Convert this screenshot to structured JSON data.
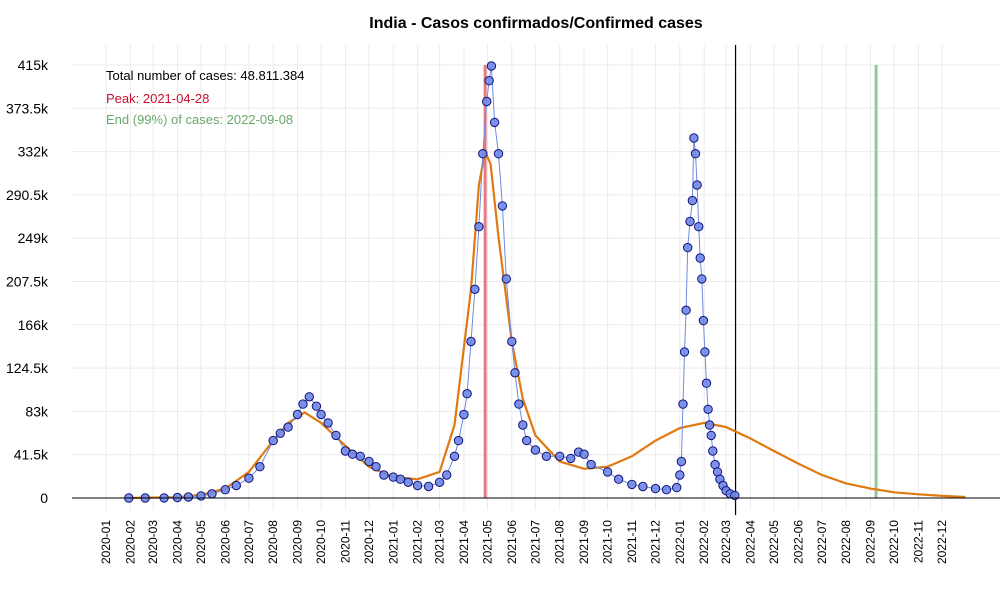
{
  "chart_data": {
    "type": "scatter",
    "title": "India - Casos confirmados/Confirmed cases",
    "xlabel": "",
    "ylabel": "",
    "xlim": [
      "2019-12-15",
      "2023-01-20"
    ],
    "ylim": [
      0,
      415000
    ],
    "grid": true,
    "y_ticks": [
      {
        "value": 0,
        "label": "0"
      },
      {
        "value": 41500,
        "label": "41.5k"
      },
      {
        "value": 83000,
        "label": "83k"
      },
      {
        "value": 124500,
        "label": "124.5k"
      },
      {
        "value": 166000,
        "label": "166k"
      },
      {
        "value": 207500,
        "label": "207.5k"
      },
      {
        "value": 249000,
        "label": "249k"
      },
      {
        "value": 290500,
        "label": "290.5k"
      },
      {
        "value": 332000,
        "label": "332k"
      },
      {
        "value": 373500,
        "label": "373.5k"
      },
      {
        "value": 415000,
        "label": "415k"
      }
    ],
    "x_ticks": [
      "2020-01",
      "2020-02",
      "2020-03",
      "2020-04",
      "2020-05",
      "2020-06",
      "2020-07",
      "2020-08",
      "2020-09",
      "2020-10",
      "2020-11",
      "2020-12",
      "2021-01",
      "2021-02",
      "2021-03",
      "2021-04",
      "2021-05",
      "2021-06",
      "2021-07",
      "2021-08",
      "2021-09",
      "2021-10",
      "2021-11",
      "2021-12",
      "2022-01",
      "2022-02",
      "2022-03",
      "2022-04",
      "2022-05",
      "2022-06",
      "2022-07",
      "2022-08",
      "2022-09",
      "2022-10",
      "2022-11",
      "2022-12"
    ],
    "annotations": {
      "total_text": "Total number of cases: 48.811.384",
      "peak_text": "Peak: 2021-04-28",
      "end_text": "End (99%) of cases: 2022-09-08"
    },
    "reference_lines": [
      {
        "date": "2021-04-28",
        "color": "#e37a85",
        "meaning": "peak"
      },
      {
        "date": "2022-03-13",
        "color": "#000000",
        "meaning": "last data"
      },
      {
        "date": "2022-09-08",
        "color": "#93c993",
        "meaning": "end 99%"
      }
    ],
    "colors": {
      "points_fill": "#6f88e8",
      "points_stroke": "#12127a",
      "points_line": "#6f8ae0",
      "fit_curve": "#e07a10",
      "peak_color": "#c8102e",
      "end_color": "#6aa86a"
    },
    "series": [
      {
        "name": "",
        "kind": "observed",
        "points": [
          [
            "2020-01-30",
            0
          ],
          [
            "2020-02-20",
            0
          ],
          [
            "2020-03-15",
            100
          ],
          [
            "2020-04-01",
            500
          ],
          [
            "2020-04-15",
            1000
          ],
          [
            "2020-05-01",
            2000
          ],
          [
            "2020-05-15",
            4000
          ],
          [
            "2020-06-01",
            8000
          ],
          [
            "2020-06-15",
            12000
          ],
          [
            "2020-07-01",
            19000
          ],
          [
            "2020-07-15",
            30000
          ],
          [
            "2020-08-01",
            55000
          ],
          [
            "2020-08-10",
            62000
          ],
          [
            "2020-08-20",
            68000
          ],
          [
            "2020-09-01",
            80000
          ],
          [
            "2020-09-08",
            90000
          ],
          [
            "2020-09-16",
            97000
          ],
          [
            "2020-09-25",
            88000
          ],
          [
            "2020-10-01",
            80000
          ],
          [
            "2020-10-10",
            72000
          ],
          [
            "2020-10-20",
            60000
          ],
          [
            "2020-11-01",
            45000
          ],
          [
            "2020-11-10",
            42000
          ],
          [
            "2020-11-20",
            40000
          ],
          [
            "2020-12-01",
            35000
          ],
          [
            "2020-12-10",
            30000
          ],
          [
            "2020-12-20",
            22000
          ],
          [
            "2021-01-01",
            20000
          ],
          [
            "2021-01-10",
            18000
          ],
          [
            "2021-01-20",
            15000
          ],
          [
            "2021-02-01",
            12000
          ],
          [
            "2021-02-15",
            11000
          ],
          [
            "2021-03-01",
            15000
          ],
          [
            "2021-03-10",
            22000
          ],
          [
            "2021-03-20",
            40000
          ],
          [
            "2021-03-25",
            55000
          ],
          [
            "2021-04-01",
            80000
          ],
          [
            "2021-04-05",
            100000
          ],
          [
            "2021-04-10",
            150000
          ],
          [
            "2021-04-15",
            200000
          ],
          [
            "2021-04-20",
            260000
          ],
          [
            "2021-04-25",
            330000
          ],
          [
            "2021-04-30",
            380000
          ],
          [
            "2021-05-03",
            400000
          ],
          [
            "2021-05-06",
            414000
          ],
          [
            "2021-05-10",
            360000
          ],
          [
            "2021-05-15",
            330000
          ],
          [
            "2021-05-20",
            280000
          ],
          [
            "2021-05-25",
            210000
          ],
          [
            "2021-06-01",
            150000
          ],
          [
            "2021-06-05",
            120000
          ],
          [
            "2021-06-10",
            90000
          ],
          [
            "2021-06-15",
            70000
          ],
          [
            "2021-06-20",
            55000
          ],
          [
            "2021-07-01",
            46000
          ],
          [
            "2021-07-15",
            40000
          ],
          [
            "2021-08-01",
            40000
          ],
          [
            "2021-08-15",
            38000
          ],
          [
            "2021-08-25",
            44000
          ],
          [
            "2021-09-01",
            42000
          ],
          [
            "2021-09-10",
            32000
          ],
          [
            "2021-10-01",
            25000
          ],
          [
            "2021-10-15",
            18000
          ],
          [
            "2021-11-01",
            13000
          ],
          [
            "2021-11-15",
            11000
          ],
          [
            "2021-12-01",
            9000
          ],
          [
            "2021-12-15",
            8000
          ],
          [
            "2021-12-28",
            10000
          ],
          [
            "2022-01-01",
            22000
          ],
          [
            "2022-01-03",
            35000
          ],
          [
            "2022-01-05",
            90000
          ],
          [
            "2022-01-07",
            140000
          ],
          [
            "2022-01-09",
            180000
          ],
          [
            "2022-01-11",
            240000
          ],
          [
            "2022-01-14",
            265000
          ],
          [
            "2022-01-17",
            285000
          ],
          [
            "2022-01-19",
            345000
          ],
          [
            "2022-01-21",
            330000
          ],
          [
            "2022-01-23",
            300000
          ],
          [
            "2022-01-25",
            260000
          ],
          [
            "2022-01-27",
            230000
          ],
          [
            "2022-01-29",
            210000
          ],
          [
            "2022-01-31",
            170000
          ],
          [
            "2022-02-02",
            140000
          ],
          [
            "2022-02-04",
            110000
          ],
          [
            "2022-02-06",
            85000
          ],
          [
            "2022-02-08",
            70000
          ],
          [
            "2022-02-10",
            60000
          ],
          [
            "2022-02-12",
            45000
          ],
          [
            "2022-02-15",
            32000
          ],
          [
            "2022-02-18",
            25000
          ],
          [
            "2022-02-21",
            18000
          ],
          [
            "2022-02-25",
            12000
          ],
          [
            "2022-03-01",
            7000
          ],
          [
            "2022-03-06",
            4000
          ],
          [
            "2022-03-12",
            2500
          ]
        ]
      },
      {
        "name": "",
        "kind": "fitted",
        "points": [
          [
            "2020-01-30",
            0
          ],
          [
            "2020-04-01",
            800
          ],
          [
            "2020-05-01",
            3000
          ],
          [
            "2020-06-01",
            9000
          ],
          [
            "2020-07-01",
            25000
          ],
          [
            "2020-08-01",
            55000
          ],
          [
            "2020-08-20",
            72000
          ],
          [
            "2020-09-10",
            82000
          ],
          [
            "2020-10-01",
            72000
          ],
          [
            "2020-11-01",
            50000
          ],
          [
            "2020-12-01",
            30000
          ],
          [
            "2021-01-01",
            20000
          ],
          [
            "2021-02-01",
            18000
          ],
          [
            "2021-03-01",
            25000
          ],
          [
            "2021-03-20",
            70000
          ],
          [
            "2021-04-10",
            200000
          ],
          [
            "2021-04-20",
            300000
          ],
          [
            "2021-04-28",
            332000
          ],
          [
            "2021-05-05",
            320000
          ],
          [
            "2021-05-15",
            250000
          ],
          [
            "2021-06-01",
            150000
          ],
          [
            "2021-06-15",
            95000
          ],
          [
            "2021-07-01",
            60000
          ],
          [
            "2021-08-01",
            35000
          ],
          [
            "2021-09-01",
            28000
          ],
          [
            "2021-10-01",
            30000
          ],
          [
            "2021-11-01",
            40000
          ],
          [
            "2021-12-01",
            55000
          ],
          [
            "2022-01-01",
            67000
          ],
          [
            "2022-02-01",
            72000
          ],
          [
            "2022-03-01",
            68000
          ],
          [
            "2022-04-01",
            57000
          ],
          [
            "2022-05-01",
            45000
          ],
          [
            "2022-06-01",
            33000
          ],
          [
            "2022-07-01",
            22000
          ],
          [
            "2022-08-01",
            14000
          ],
          [
            "2022-09-01",
            9000
          ],
          [
            "2022-10-01",
            5500
          ],
          [
            "2022-11-01",
            3500
          ],
          [
            "2022-12-01",
            2000
          ],
          [
            "2022-12-31",
            1000
          ]
        ]
      }
    ]
  }
}
